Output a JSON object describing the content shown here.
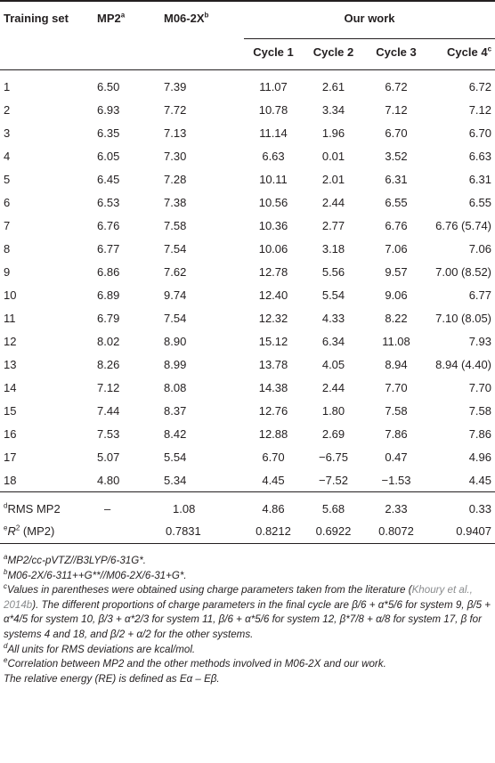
{
  "table": {
    "headers": {
      "training_set": "Training set",
      "mp2": "MP2",
      "mp2_sup": "a",
      "m06": "M06-2X",
      "m06_sup": "b",
      "our_work": "Our work",
      "cycles": [
        "Cycle 1",
        "Cycle 2",
        "Cycle 3",
        "Cycle 4"
      ],
      "cycle4_sup": "c"
    },
    "rows": [
      {
        "set": "1",
        "mp2": "6.50",
        "m06": "7.39",
        "c1": "11.07",
        "c2": "2.61",
        "c3": "6.72",
        "c4": "6.72"
      },
      {
        "set": "2",
        "mp2": "6.93",
        "m06": "7.72",
        "c1": "10.78",
        "c2": "3.34",
        "c3": "7.12",
        "c4": "7.12"
      },
      {
        "set": "3",
        "mp2": "6.35",
        "m06": "7.13",
        "c1": "11.14",
        "c2": "1.96",
        "c3": "6.70",
        "c4": "6.70"
      },
      {
        "set": "4",
        "mp2": "6.05",
        "m06": "7.30",
        "c1": "6.63",
        "c2": "0.01",
        "c3": "3.52",
        "c4": "6.63"
      },
      {
        "set": "5",
        "mp2": "6.45",
        "m06": "7.28",
        "c1": "10.11",
        "c2": "2.01",
        "c3": "6.31",
        "c4": "6.31"
      },
      {
        "set": "6",
        "mp2": "6.53",
        "m06": "7.38",
        "c1": "10.56",
        "c2": "2.44",
        "c3": "6.55",
        "c4": "6.55"
      },
      {
        "set": "7",
        "mp2": "6.76",
        "m06": "7.58",
        "c1": "10.36",
        "c2": "2.77",
        "c3": "6.76",
        "c4": "6.76 (5.74)"
      },
      {
        "set": "8",
        "mp2": "6.77",
        "m06": "7.54",
        "c1": "10.06",
        "c2": "3.18",
        "c3": "7.06",
        "c4": "7.06"
      },
      {
        "set": "9",
        "mp2": "6.86",
        "m06": "7.62",
        "c1": "12.78",
        "c2": "5.56",
        "c3": "9.57",
        "c4": "7.00 (8.52)"
      },
      {
        "set": "10",
        "mp2": "6.89",
        "m06": "9.74",
        "c1": "12.40",
        "c2": "5.54",
        "c3": "9.06",
        "c4": "6.77"
      },
      {
        "set": "11",
        "mp2": "6.79",
        "m06": "7.54",
        "c1": "12.32",
        "c2": "4.33",
        "c3": "8.22",
        "c4": "7.10 (8.05)"
      },
      {
        "set": "12",
        "mp2": "8.02",
        "m06": "8.90",
        "c1": "15.12",
        "c2": "6.34",
        "c3": "11.08",
        "c4": "7.93"
      },
      {
        "set": "13",
        "mp2": "8.26",
        "m06": "8.99",
        "c1": "13.78",
        "c2": "4.05",
        "c3": "8.94",
        "c4": "8.94 (4.40)"
      },
      {
        "set": "14",
        "mp2": "7.12",
        "m06": "8.08",
        "c1": "14.38",
        "c2": "2.44",
        "c3": "7.70",
        "c4": "7.70"
      },
      {
        "set": "15",
        "mp2": "7.44",
        "m06": "8.37",
        "c1": "12.76",
        "c2": "1.80",
        "c3": "7.58",
        "c4": "7.58"
      },
      {
        "set": "16",
        "mp2": "7.53",
        "m06": "8.42",
        "c1": "12.88",
        "c2": "2.69",
        "c3": "7.86",
        "c4": "7.86"
      },
      {
        "set": "17",
        "mp2": "5.07",
        "m06": "5.54",
        "c1": "6.70",
        "c2": "−6.75",
        "c3": "0.47",
        "c4": "4.96"
      },
      {
        "set": "18",
        "mp2": "4.80",
        "m06": "5.34",
        "c1": "4.45",
        "c2": "−7.52",
        "c3": "−1.53",
        "c4": "4.45"
      }
    ],
    "rms": {
      "sup": "d",
      "label": "RMS MP2",
      "mp2": "–",
      "m06": "1.08",
      "c1": "4.86",
      "c2": "5.68",
      "c3": "2.33",
      "c4": "0.33"
    },
    "r2": {
      "sup": "e",
      "label_r": "R",
      "label_sq": "2",
      "label_rest": " (MP2)",
      "m06": "0.7831",
      "c1": "0.8212",
      "c2": "0.6922",
      "c3": "0.8072",
      "c4": "0.9407"
    }
  },
  "notes": {
    "a": {
      "sup": "a",
      "text": "MP2/cc-pVTZ//B3LYP/6-31G*."
    },
    "b": {
      "sup": "b",
      "text": "M06-2X/6-311++G**//M06-2X/6-31+G*."
    },
    "c": {
      "sup": "c",
      "text1": "Values in parentheses were obtained using charge parameters taken from the literature (",
      "cite": "Khoury et al., 2014b",
      "text2": "). The different proportions of charge parameters in the final cycle are β/6 + α*5/6 for system 9, β/5 + α*4/5 for system 10, β/3 + α*2/3 for system 11, β/6 + α*5/6 for system 12, β*7/8 + α/8 for system 17, β for systems 4 and 18, and β/2 + α/2 for the other systems."
    },
    "d": {
      "sup": "d",
      "text": "All units for RMS deviations are kcal/mol."
    },
    "e": {
      "sup": "e",
      "text": "Correlation between MP2 and the other methods involved in M06-2X and our work."
    },
    "f": {
      "text": "The relative energy (RE) is defined as Eα – Eβ."
    }
  }
}
